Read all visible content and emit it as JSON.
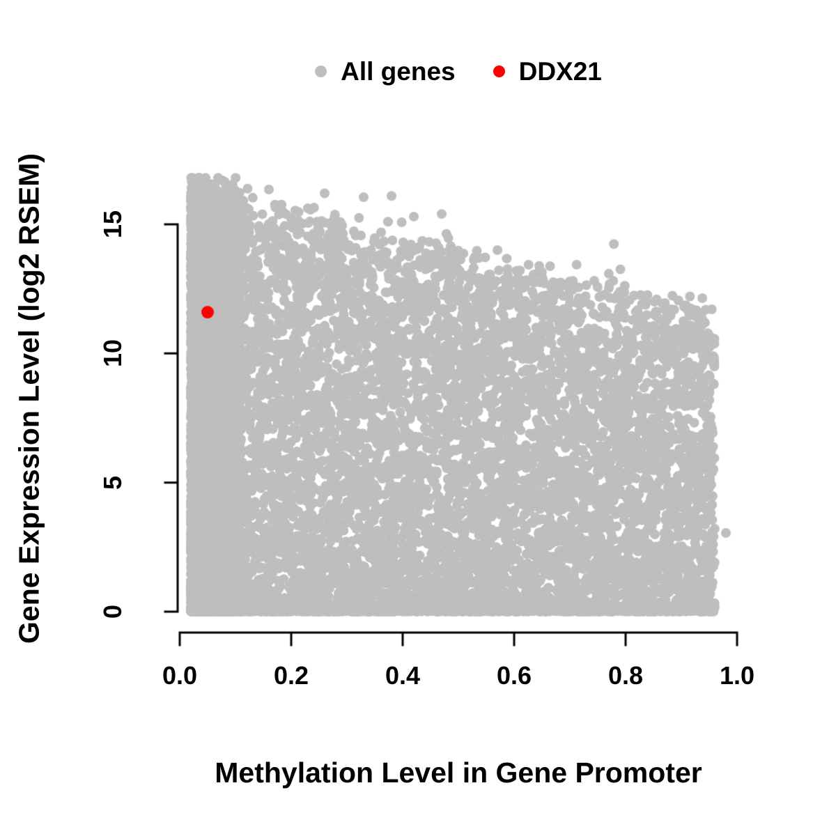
{
  "chart_data": {
    "type": "scatter",
    "title": "",
    "xlabel": "Methylation Level in Gene Promoter",
    "ylabel": "Gene Expression Level (log2 RSEM)",
    "xlim": [
      0,
      1
    ],
    "ylim": [
      0,
      17
    ],
    "grid": false,
    "axis_color": "#000000",
    "xticks": {
      "values": [
        0,
        0.2,
        0.4,
        0.6,
        0.8,
        1.0
      ],
      "labels": [
        "0.0",
        "0.2",
        "0.4",
        "0.6",
        "0.8",
        "1.0"
      ]
    },
    "yticks": {
      "values": [
        0,
        5,
        10,
        15
      ],
      "labels": [
        "0",
        "5",
        "10",
        "15"
      ]
    },
    "legend": {
      "position": "top-center",
      "entries": [
        {
          "label": "All genes",
          "color": "#bebebe",
          "marker": "filled-circle"
        },
        {
          "label": "DDX21",
          "color": "#ff0000",
          "marker": "filled-circle"
        }
      ]
    },
    "point_radius_px": 7,
    "highlight_radius_px": 9,
    "series": [
      {
        "name": "All genes",
        "color": "#bebebe",
        "type": "dense-cloud",
        "approx_n_points": 14000,
        "x_range": [
          0.02,
          0.96
        ],
        "y_upper_envelope": {
          "at_x0": 16.5,
          "at_x1": 11.3
        },
        "envelope_noise_sd": 0.45,
        "left_band": {
          "x_max": 0.11,
          "fraction": 0.3
        },
        "baseline_band": {
          "y": 0,
          "fraction": 0.2
        },
        "notable_points": [
          [
            0.98,
            3.05
          ],
          [
            0.33,
            16.05
          ],
          [
            0.38,
            16.1
          ],
          [
            0.26,
            16.2
          ],
          [
            0.16,
            16.35
          ],
          [
            0.47,
            15.4
          ],
          [
            0.42,
            15.3
          ]
        ],
        "seed": 20240117
      },
      {
        "name": "DDX21",
        "color": "#ff0000",
        "points": [
          [
            0.05,
            11.6
          ]
        ]
      }
    ]
  }
}
